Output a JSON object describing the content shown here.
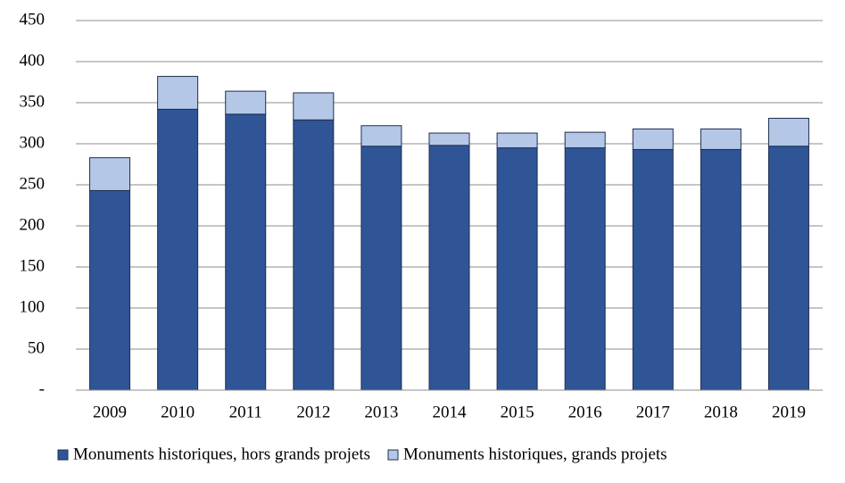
{
  "chart_data": {
    "type": "stacked-bar",
    "categories": [
      "2009",
      "2010",
      "2011",
      "2012",
      "2013",
      "2014",
      "2015",
      "2016",
      "2017",
      "2018",
      "2019"
    ],
    "series": [
      {
        "name": "Monuments historiques, hors grands projets",
        "color": "#2f5597",
        "values": [
          243,
          342,
          336,
          329,
          297,
          298,
          295,
          295,
          293,
          293,
          297
        ]
      },
      {
        "name": "Monuments historiques, grands projets",
        "color": "#b4c7e7",
        "values": [
          40,
          40,
          28,
          33,
          25,
          15,
          18,
          19,
          25,
          25,
          34
        ]
      }
    ],
    "ylim": [
      0,
      450
    ],
    "yticks": [
      {
        "value": 0,
        "label": "-"
      },
      50,
      100,
      150,
      200,
      250,
      300,
      350,
      400,
      450
    ],
    "grid": true
  }
}
